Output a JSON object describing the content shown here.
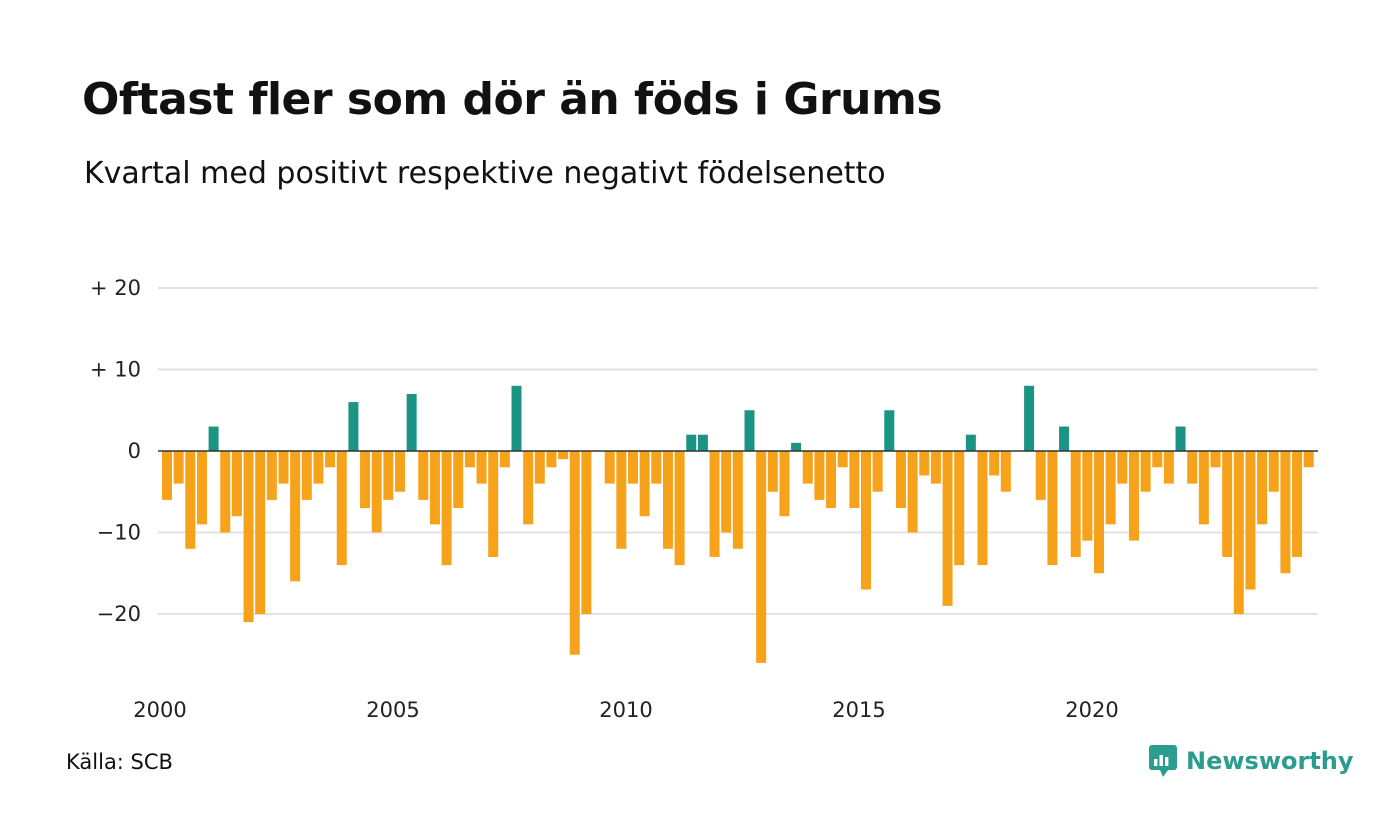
{
  "header": {
    "title": "Oftast fler som dör än föds i Grums",
    "subtitle": "Kvartal med positivt respektive negativt födelsenetto"
  },
  "footer": {
    "source": "Källa: SCB",
    "brand": "Newsworthy",
    "brand_icon": "newsworthy-logo-icon"
  },
  "colors": {
    "positive": "#1a9485",
    "negative": "#f7a21b",
    "grid": "#e2e2e2",
    "zero_line": "#333333",
    "brand": "#2a9d8f"
  },
  "chart_data": {
    "type": "bar",
    "title": "Oftast fler som dör än föds i Grums",
    "subtitle": "Kvartal med positivt respektive negativt födelsenetto",
    "xlabel": "",
    "ylabel": "",
    "x_start": 2000.0,
    "x_step": 0.25,
    "x_ticks": [
      2000,
      2005,
      2010,
      2015,
      2020
    ],
    "x_tick_labels": [
      "2000",
      "2005",
      "2010",
      "2015",
      "2020"
    ],
    "y_ticks": [
      20,
      10,
      0,
      -10,
      -20
    ],
    "y_tick_labels": [
      "+ 20",
      "+ 10",
      "0",
      "−10",
      "−20"
    ],
    "ylim": [
      -28,
      22
    ],
    "xlim": [
      2000,
      2024.9
    ],
    "grid": true,
    "values": [
      -6,
      -4,
      -12,
      -9,
      3,
      -10,
      -8,
      -21,
      -20,
      -6,
      -4,
      -16,
      -6,
      -4,
      -2,
      -14,
      6,
      -7,
      -10,
      -6,
      -5,
      7,
      -6,
      -9,
      -14,
      -7,
      -2,
      -4,
      -13,
      -2,
      8,
      -9,
      -4,
      -2,
      -1,
      -25,
      -20,
      0,
      -4,
      -12,
      -4,
      -8,
      -4,
      -12,
      -14,
      2,
      2,
      -13,
      -10,
      -12,
      5,
      -26,
      -5,
      -8,
      1,
      -4,
      -6,
      -7,
      -2,
      -7,
      -17,
      -5,
      5,
      -7,
      -10,
      -3,
      -4,
      -19,
      -14,
      2,
      -14,
      -3,
      -5,
      0,
      8,
      -6,
      -14,
      3,
      -13,
      -11,
      -15,
      -9,
      -4,
      -11,
      -5,
      -2,
      -4,
      3,
      -4,
      -9,
      -2,
      -13,
      -20,
      -17,
      -9,
      -5,
      -15,
      -13,
      -2
    ]
  }
}
